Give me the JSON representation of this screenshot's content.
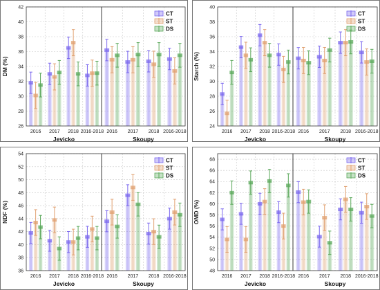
{
  "colors": {
    "CT": "#7b68ee",
    "ST": "#e0a070",
    "DS": "#5aa85a",
    "grid": "#c8c8c8",
    "frame": "#333333",
    "panel_border": "#555555"
  },
  "groups": [
    "Jevicko",
    "Skoupy"
  ],
  "years": [
    "2016",
    "2017",
    "2018",
    "2016-2018"
  ],
  "chart_data": [
    {
      "type": "bar",
      "ylabel": "DM (%)",
      "ylim": [
        26,
        42
      ],
      "yticks": [
        26,
        28,
        30,
        32,
        34,
        36,
        38,
        40,
        42
      ],
      "legend": [
        "CT",
        "ST",
        "DS"
      ],
      "legend_position": "top-right",
      "grid": true,
      "groups": [
        "Jevicko",
        "Skoupy"
      ],
      "categories": [
        "2016",
        "2017",
        "2018",
        "2016-2018"
      ],
      "series": [
        {
          "name": "CT",
          "values": [
            [
              31.8,
              33.0,
              36.5,
              32.8
            ],
            [
              36.2,
              34.6,
              34.7,
              35.0
            ]
          ]
        },
        {
          "name": "ST",
          "values": [
            [
              30.1,
              32.6,
              37.2,
              33.1
            ],
            [
              34.9,
              34.9,
              34.3,
              33.4
            ]
          ]
        },
        {
          "name": "DS",
          "values": [
            [
              31.5,
              33.2,
              33.0,
              33.1
            ],
            [
              35.5,
              35.6,
              35.6,
              35.5
            ]
          ]
        }
      ]
    },
    {
      "type": "bar",
      "ylabel": "Starch (%)",
      "ylim": [
        24,
        40
      ],
      "yticks": [
        24,
        26,
        28,
        30,
        32,
        34,
        36,
        38,
        40
      ],
      "legend": [
        "CT",
        "ST",
        "DS"
      ],
      "legend_position": "top-right",
      "grid": true,
      "groups": [
        "Jevicko",
        "Skoupy"
      ],
      "categories": [
        "2016",
        "2017",
        "2018",
        "2016-2018"
      ],
      "series": [
        {
          "name": "CT",
          "values": [
            [
              28.3,
              34.6,
              36.2,
              33.6
            ],
            [
              33.1,
              33.3,
              35.2,
              33.9
            ]
          ]
        },
        {
          "name": "ST",
          "values": [
            [
              25.7,
              33.5,
              35.2,
              31.6
            ],
            [
              32.8,
              32.8,
              35.2,
              32.6
            ]
          ]
        },
        {
          "name": "DS",
          "values": [
            [
              31.2,
              32.9,
              33.5,
              32.6
            ],
            [
              32.5,
              34.2,
              35.3,
              32.7
            ]
          ]
        }
      ]
    },
    {
      "type": "bar",
      "ylabel": "NDF (%)",
      "ylim": [
        36,
        54
      ],
      "yticks": [
        36,
        38,
        40,
        42,
        44,
        46,
        48,
        50,
        52,
        54
      ],
      "legend": [
        "CT",
        "ST",
        "DS"
      ],
      "legend_position": "top-right",
      "grid": true,
      "groups": [
        "Jevicko",
        "Skoupy"
      ],
      "categories": [
        "2016",
        "2017",
        "2018",
        "2016-2018"
      ],
      "series": [
        {
          "name": "CT",
          "values": [
            [
              41.8,
              40.6,
              40.4,
              41.2
            ],
            [
              43.6,
              47.6,
              41.7,
              44.0
            ]
          ]
        },
        {
          "name": "ST",
          "values": [
            [
              43.4,
              43.8,
              40.4,
              42.4
            ],
            [
              45.0,
              48.8,
              42.0,
              45.0
            ]
          ]
        },
        {
          "name": "DS",
          "values": [
            [
              42.7,
              39.4,
              41.0,
              41.0
            ],
            [
              42.8,
              46.2,
              41.2,
              44.6
            ]
          ]
        }
      ]
    },
    {
      "type": "bar",
      "ylabel": "OMD (%)",
      "ylim": [
        48,
        69
      ],
      "yticks": [
        48,
        50,
        52,
        54,
        56,
        58,
        60,
        62,
        64,
        66,
        68
      ],
      "legend": [
        "CT",
        "ST",
        "DS"
      ],
      "legend_position": "top-right",
      "grid": true,
      "groups": [
        "Jevicko",
        "Skoupy"
      ],
      "categories": [
        "2016",
        "2017",
        "2018",
        "2016-2018"
      ],
      "series": [
        {
          "name": "CT",
          "values": [
            [
              57.2,
              58.2,
              60.0,
              58.5
            ],
            [
              62.1,
              54.1,
              59.0,
              58.4
            ]
          ]
        },
        {
          "name": "ST",
          "values": [
            [
              53.6,
              53.6,
              60.4,
              56.0
            ],
            [
              60.3,
              57.5,
              60.8,
              59.5
            ]
          ]
        },
        {
          "name": "DS",
          "values": [
            [
              62.0,
              63.8,
              64.1,
              63.3
            ],
            [
              60.4,
              53.0,
              59.0,
              57.8
            ]
          ]
        }
      ]
    }
  ]
}
